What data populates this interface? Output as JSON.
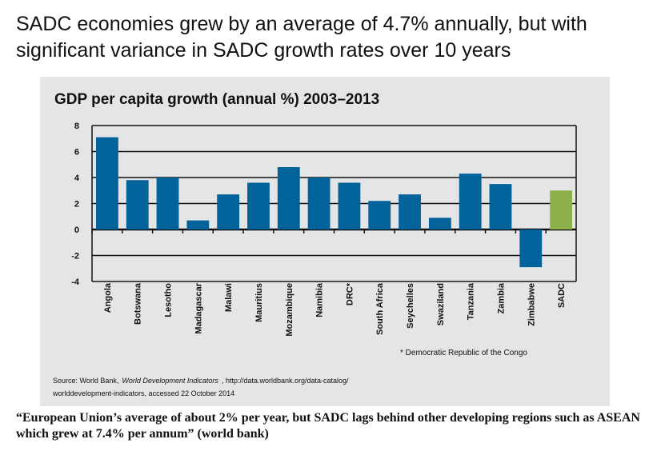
{
  "slide_title": "SADC economies grew by an average of 4.7% annually, but with significant variance in SADC growth rates over 10 years",
  "chart_data": {
    "type": "bar",
    "title": "GDP per capita growth (annual %) 2003–2013",
    "categories": [
      "Angola",
      "Botswana",
      "Lesotho",
      "Madagascar",
      "Malawi",
      "Mauritius",
      "Mozambique",
      "Namibia",
      "DRC*",
      "South Africa",
      "Seychelles",
      "Swaziland",
      "Tanzania",
      "Zambia",
      "Zimbabwe",
      "SADC"
    ],
    "values": [
      7.1,
      3.8,
      4.0,
      0.7,
      2.7,
      3.6,
      4.8,
      4.0,
      3.6,
      2.2,
      2.7,
      0.9,
      4.3,
      3.5,
      -2.9,
      3.0
    ],
    "ylim": [
      -4,
      8
    ],
    "yticks": [
      "8",
      "6",
      "4",
      "2",
      "0",
      "-2",
      "-4"
    ],
    "grid": true,
    "colors": {
      "country": "#02629a",
      "sadc": "#8db04a"
    }
  },
  "footnote": "* Democratic Republic of the Congo",
  "source": {
    "prefix": "Source: World Bank,",
    "italic": "World Development Indicators",
    "suffix": ", http://data.worldbank.org/data-catalog/",
    "line2": "worlddevelopment-indicators, accessed 22 October 2014"
  },
  "quote": "“European Union’s average of about 2% per year, but SADC lags behind other developing regions such as ASEAN which grew at 7.4% per annum” (world bank)"
}
